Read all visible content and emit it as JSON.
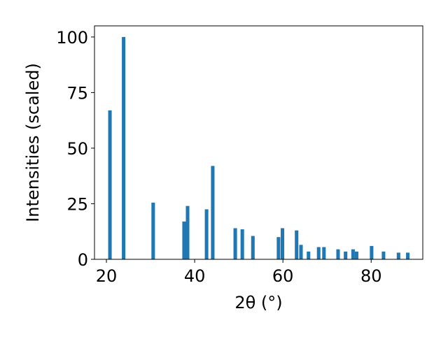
{
  "chart_data": {
    "type": "bar",
    "title": "",
    "xlabel": "2θ (°)",
    "ylabel": "Intensities (scaled)",
    "xlim": [
      17.3,
      91.7
    ],
    "ylim": [
      0,
      105
    ],
    "xticks": [
      20,
      40,
      60,
      80
    ],
    "yticks": [
      0,
      25,
      50,
      75,
      100
    ],
    "grid": false,
    "bar_color": "#1f77b4",
    "bar_width_deg": 0.8,
    "x": [
      20.8,
      23.9,
      30.6,
      37.6,
      38.4,
      42.7,
      44.1,
      49.2,
      50.8,
      53.2,
      59.0,
      59.9,
      63.1,
      64.1,
      65.8,
      68.1,
      69.3,
      72.5,
      74.2,
      75.9,
      76.7,
      80.1,
      82.8,
      86.2,
      88.3
    ],
    "values": [
      67,
      100,
      25.5,
      17,
      24,
      22.5,
      42,
      14,
      13.5,
      10.5,
      10,
      14,
      13,
      6.5,
      3.5,
      5.5,
      5.5,
      4.5,
      3.5,
      4.5,
      3.5,
      6,
      3.5,
      3,
      3
    ]
  }
}
